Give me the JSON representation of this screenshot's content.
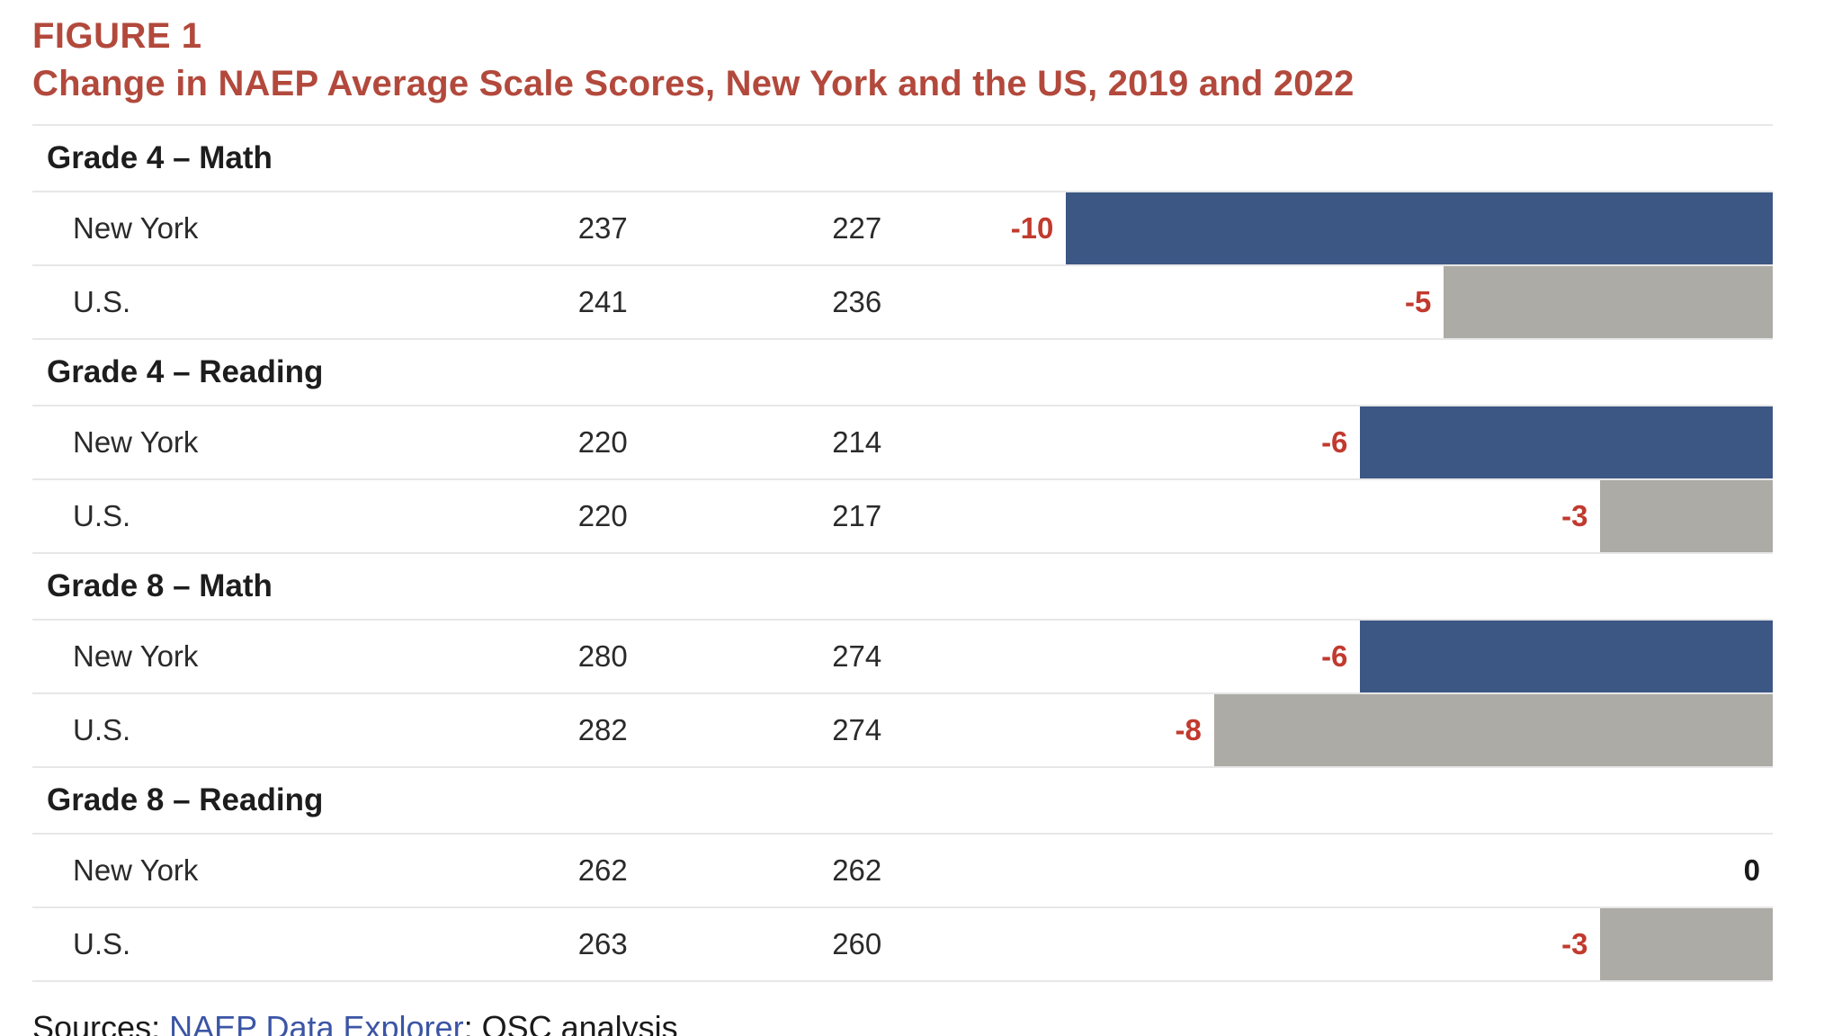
{
  "figure": {
    "label": "FIGURE 1",
    "title": "Change in NAEP Average Scale Scores, New York and the US, 2019 and 2022"
  },
  "chart_data": {
    "type": "bar",
    "orientation": "horizontal",
    "description": "Table of NAEP average scale scores for 2019 and 2022 with change values; negative change shown as right-aligned horizontal bars (blue = New York, gray = U.S.)",
    "value_columns": [
      "2019 score",
      "2022 score",
      "change"
    ],
    "bar_colors": {
      "new_york": "#3d5784",
      "us": "#acaba5"
    },
    "negative_value_color": "#c13a2e",
    "zero_value_color": "#1a1a1a",
    "title_color": "#b2493c",
    "sections": [
      {
        "label": "Grade 4 – Math",
        "rows": [
          {
            "label": "New York",
            "score_2019": 237,
            "score_2022": 227,
            "change": "-10",
            "bar_pct": 40.6
          },
          {
            "label": "U.S.",
            "score_2019": 241,
            "score_2022": 236,
            "change": "-5",
            "bar_pct": 18.9
          }
        ]
      },
      {
        "label": "Grade 4 – Reading",
        "rows": [
          {
            "label": "New York",
            "score_2019": 220,
            "score_2022": 214,
            "change": "-6",
            "bar_pct": 23.7
          },
          {
            "label": "U.S.",
            "score_2019": 220,
            "score_2022": 217,
            "change": "-3",
            "bar_pct": 9.9
          }
        ]
      },
      {
        "label": "Grade 8 – Math",
        "rows": [
          {
            "label": "New York",
            "score_2019": 280,
            "score_2022": 274,
            "change": "-6",
            "bar_pct": 23.7
          },
          {
            "label": "U.S.",
            "score_2019": 282,
            "score_2022": 274,
            "change": "-8",
            "bar_pct": 32.1
          }
        ]
      },
      {
        "label": "Grade 8 – Reading",
        "rows": [
          {
            "label": "New York",
            "score_2019": 262,
            "score_2022": 262,
            "change": "0",
            "bar_pct": 0
          },
          {
            "label": "U.S.",
            "score_2019": 263,
            "score_2022": 260,
            "change": "-3",
            "bar_pct": 9.9
          }
        ]
      }
    ]
  },
  "footer": {
    "prefix": "Sources: ",
    "link_label": "NAEP Data Explorer",
    "suffix": "; OSC analysis",
    "link_color": "#3b55a5"
  }
}
